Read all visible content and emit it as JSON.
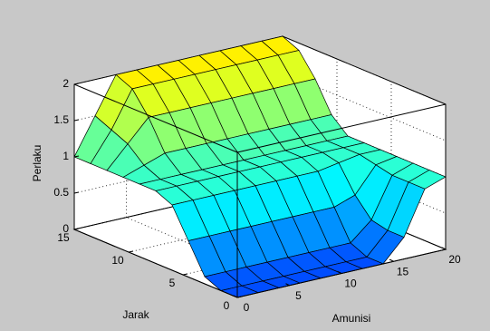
{
  "chart_data": {
    "type": "surface",
    "xlabel": "Amunisi",
    "ylabel": "Jarak",
    "zlabel": "Perlaku",
    "x": [
      0,
      2,
      4,
      6,
      8,
      10,
      12,
      14,
      16,
      18,
      20
    ],
    "y": [
      0,
      1.5,
      3,
      4.5,
      6,
      7.5,
      9,
      10.5,
      12,
      13.5,
      15
    ],
    "z": [
      [
        0,
        0,
        0,
        0,
        0,
        0,
        0,
        0,
        0.3,
        0.9,
        1
      ],
      [
        0,
        0,
        0,
        0,
        0,
        0,
        0,
        0,
        0.3,
        0.9,
        1
      ],
      [
        0.1,
        0.1,
        0.1,
        0.1,
        0.1,
        0.1,
        0.1,
        0.1,
        0.35,
        0.9,
        1
      ],
      [
        0.5,
        0.5,
        0.5,
        0.5,
        0.5,
        0.5,
        0.5,
        0.5,
        0.6,
        0.95,
        1
      ],
      [
        0.9,
        0.9,
        0.9,
        0.9,
        0.9,
        0.9,
        0.9,
        0.9,
        0.95,
        1,
        1
      ],
      [
        1,
        1,
        1,
        1,
        1,
        1,
        1,
        1,
        1,
        1,
        1
      ],
      [
        1,
        1,
        1,
        1,
        1,
        1,
        1,
        1,
        1,
        1,
        1
      ],
      [
        1,
        1.1,
        1.2,
        1.2,
        1.2,
        1.2,
        1.2,
        1.2,
        1.2,
        1.2,
        1.2
      ],
      [
        1,
        1.3,
        1.6,
        1.6,
        1.6,
        1.6,
        1.6,
        1.6,
        1.6,
        1.6,
        1.6
      ],
      [
        1,
        1.4,
        1.9,
        1.9,
        1.9,
        1.9,
        1.9,
        1.9,
        1.9,
        1.9,
        1.9
      ],
      [
        1,
        1.5,
        2,
        2,
        2,
        2,
        2,
        2,
        2,
        2,
        2
      ]
    ],
    "xlim": [
      0,
      20
    ],
    "xticks": [
      0,
      5,
      10,
      15,
      20
    ],
    "ylim": [
      0,
      15
    ],
    "yticks": [
      0,
      5,
      10,
      15
    ],
    "zlim": [
      0,
      2
    ],
    "zticks": [
      0,
      0.5,
      1,
      1.5,
      2
    ],
    "grid": true,
    "colormap": "jet"
  }
}
